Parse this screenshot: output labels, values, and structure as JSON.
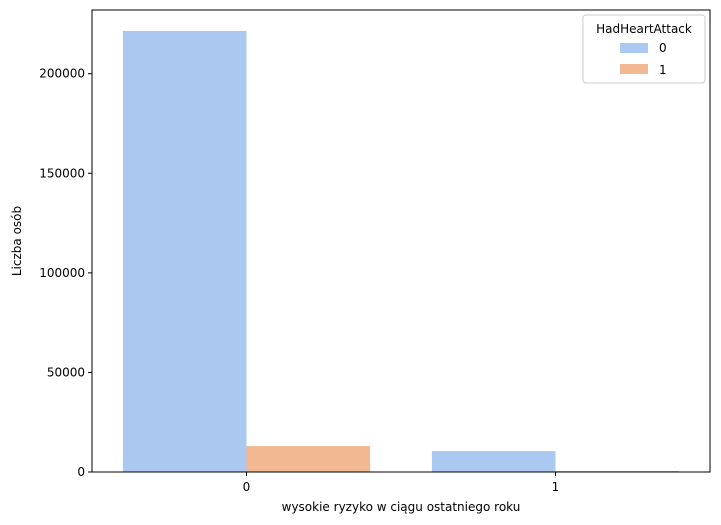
{
  "chart_data": {
    "type": "bar",
    "title": "",
    "xlabel": "wysokie ryzyko w ciągu ostatniego roku",
    "ylabel": "Liczba osób",
    "categories": [
      "0",
      "1"
    ],
    "ylim": [
      0,
      232000
    ],
    "yticks": [
      0,
      50000,
      100000,
      150000,
      200000
    ],
    "ytick_labels": [
      "0",
      "50000",
      "100000",
      "150000",
      "200000"
    ],
    "series": [
      {
        "name": "0",
        "color": "#abc9f0",
        "values": [
          221500,
          10500
        ]
      },
      {
        "name": "1",
        "color": "#f2b891",
        "values": [
          13000,
          500
        ]
      }
    ],
    "legend": {
      "title": "HadHeartAttack",
      "placement": "top-right"
    },
    "grid": false
  }
}
